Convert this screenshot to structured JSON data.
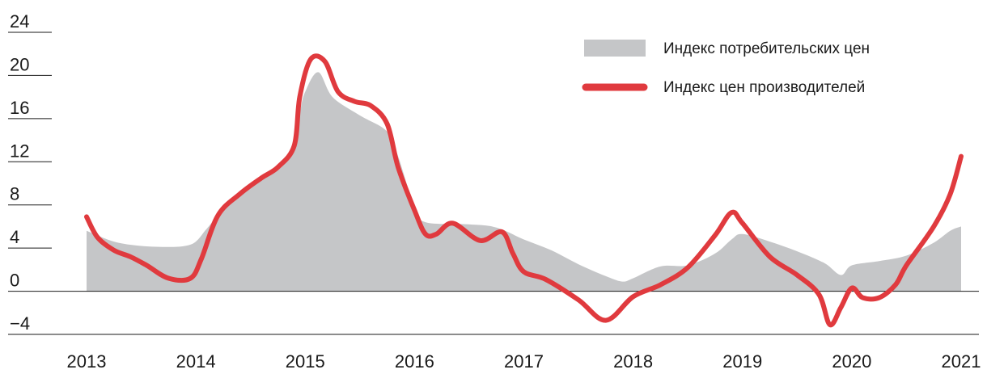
{
  "chart_data": {
    "type": "area",
    "xlim": [
      2013,
      2021
    ],
    "ylim": [
      -4,
      24
    ],
    "x_ticks": [
      "2013",
      "2014",
      "2015",
      "2016",
      "2017",
      "2018",
      "2019",
      "2020",
      "2021"
    ],
    "y_ticks": [
      "24",
      "20",
      "16",
      "12",
      "8",
      "4",
      "0",
      "−4"
    ],
    "grid": false,
    "legend_position": "top-right",
    "colors": {
      "cpi": "#c5c6c8",
      "ppi": "#e03a3e",
      "axis": "#1a1a1a"
    },
    "series": [
      {
        "name": "Индекс потребительских цен",
        "type": "area",
        "points": [
          [
            2013.0,
            5.6
          ],
          [
            2013.25,
            4.6
          ],
          [
            2013.5,
            4.2
          ],
          [
            2013.75,
            4.1
          ],
          [
            2013.9,
            4.2
          ],
          [
            2014.0,
            4.6
          ],
          [
            2014.1,
            5.8
          ],
          [
            2014.25,
            7.5
          ],
          [
            2014.5,
            9.6
          ],
          [
            2014.75,
            11.4
          ],
          [
            2014.88,
            13.0
          ],
          [
            2014.95,
            16.5
          ],
          [
            2015.0,
            18.5
          ],
          [
            2015.12,
            20.3
          ],
          [
            2015.25,
            18.0
          ],
          [
            2015.5,
            16.3
          ],
          [
            2015.75,
            14.8
          ],
          [
            2015.85,
            12.5
          ],
          [
            2016.0,
            7.8
          ],
          [
            2016.1,
            6.4
          ],
          [
            2016.5,
            6.2
          ],
          [
            2016.75,
            5.9
          ],
          [
            2017.0,
            4.8
          ],
          [
            2017.25,
            3.8
          ],
          [
            2017.5,
            2.5
          ],
          [
            2017.75,
            1.4
          ],
          [
            2017.9,
            0.9
          ],
          [
            2018.0,
            1.2
          ],
          [
            2018.25,
            2.3
          ],
          [
            2018.5,
            2.4
          ],
          [
            2018.75,
            3.5
          ],
          [
            2018.9,
            4.8
          ],
          [
            2019.0,
            5.3
          ],
          [
            2019.25,
            4.6
          ],
          [
            2019.5,
            3.7
          ],
          [
            2019.75,
            2.6
          ],
          [
            2019.9,
            1.5
          ],
          [
            2020.0,
            2.4
          ],
          [
            2020.25,
            2.8
          ],
          [
            2020.5,
            3.3
          ],
          [
            2020.75,
            4.5
          ],
          [
            2020.9,
            5.6
          ],
          [
            2021.0,
            6.0
          ]
        ]
      },
      {
        "name": "Индекс цен производителей",
        "type": "line",
        "points": [
          [
            2013.0,
            6.9
          ],
          [
            2013.1,
            5.0
          ],
          [
            2013.25,
            3.8
          ],
          [
            2013.4,
            3.2
          ],
          [
            2013.55,
            2.4
          ],
          [
            2013.75,
            1.2
          ],
          [
            2013.95,
            1.2
          ],
          [
            2014.05,
            3.0
          ],
          [
            2014.2,
            7.0
          ],
          [
            2014.4,
            9.0
          ],
          [
            2014.6,
            10.5
          ],
          [
            2014.75,
            11.5
          ],
          [
            2014.9,
            13.5
          ],
          [
            2014.95,
            18.0
          ],
          [
            2015.05,
            21.5
          ],
          [
            2015.18,
            21.3
          ],
          [
            2015.3,
            18.5
          ],
          [
            2015.45,
            17.6
          ],
          [
            2015.6,
            17.2
          ],
          [
            2015.75,
            15.5
          ],
          [
            2015.85,
            11.5
          ],
          [
            2016.0,
            7.5
          ],
          [
            2016.1,
            5.3
          ],
          [
            2016.2,
            5.3
          ],
          [
            2016.35,
            6.3
          ],
          [
            2016.6,
            4.7
          ],
          [
            2016.8,
            5.5
          ],
          [
            2016.9,
            3.5
          ],
          [
            2017.0,
            1.8
          ],
          [
            2017.2,
            1.1
          ],
          [
            2017.5,
            -0.8
          ],
          [
            2017.75,
            -2.7
          ],
          [
            2018.0,
            -0.5
          ],
          [
            2018.25,
            0.6
          ],
          [
            2018.5,
            2.2
          ],
          [
            2018.75,
            5.2
          ],
          [
            2018.9,
            7.3
          ],
          [
            2019.0,
            6.3
          ],
          [
            2019.25,
            3.2
          ],
          [
            2019.5,
            1.5
          ],
          [
            2019.7,
            -0.3
          ],
          [
            2019.8,
            -3.1
          ],
          [
            2019.9,
            -1.5
          ],
          [
            2020.0,
            0.3
          ],
          [
            2020.1,
            -0.6
          ],
          [
            2020.25,
            -0.6
          ],
          [
            2020.4,
            0.6
          ],
          [
            2020.5,
            2.4
          ],
          [
            2020.75,
            6.0
          ],
          [
            2020.9,
            9.0
          ],
          [
            2021.0,
            12.5
          ]
        ]
      }
    ]
  }
}
